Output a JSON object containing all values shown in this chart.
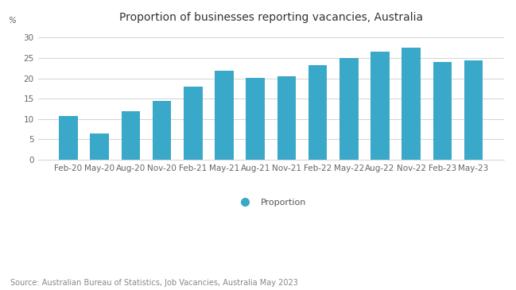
{
  "title": "Proportion of businesses reporting vacancies, Australia",
  "categories": [
    "Feb-20",
    "May-20",
    "Aug-20",
    "Nov-20",
    "Feb-21",
    "May-21",
    "Aug-21",
    "Nov-21",
    "Feb-22",
    "May-22",
    "Aug-22",
    "Nov-22",
    "Feb-23",
    "May-23"
  ],
  "values": [
    10.8,
    6.5,
    11.9,
    14.5,
    18.0,
    21.8,
    20.1,
    20.5,
    23.3,
    25.0,
    26.5,
    27.5,
    24.0,
    24.5
  ],
  "bar_color": "#3aa8c8",
  "ylim": [
    0,
    32
  ],
  "yticks": [
    0,
    5,
    10,
    15,
    20,
    25,
    30
  ],
  "legend_label": "Proportion",
  "source_text": "Source: Australian Bureau of Statistics, Job Vacancies, Australia May 2023",
  "background_color": "#ffffff",
  "grid_color": "#cccccc",
  "title_fontsize": 10,
  "tick_fontsize": 7.5,
  "source_fontsize": 7,
  "ylabel": "%"
}
